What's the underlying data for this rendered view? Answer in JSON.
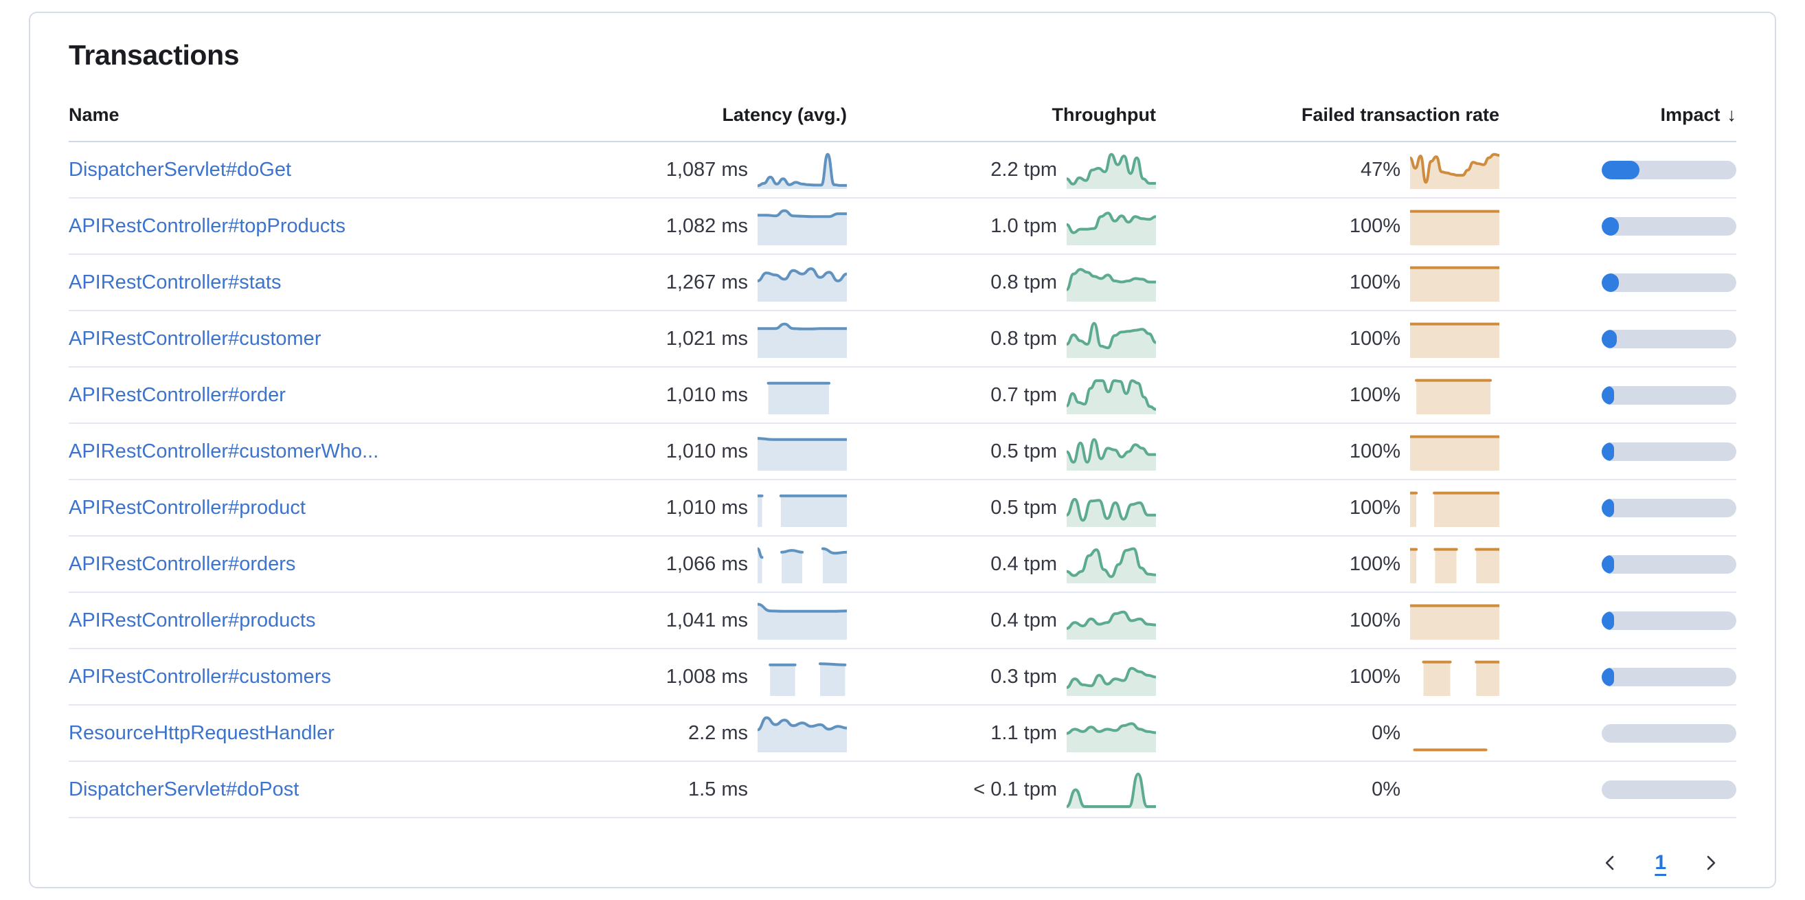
{
  "card": {
    "title": "Transactions"
  },
  "palette": {
    "link": "#3c73cd",
    "link_bright": "#2674dd",
    "heading": "#1a1c21",
    "text": "#343741",
    "card_border": "#d6dce8",
    "divider": "#e3e8f2",
    "divider_strong": "#cfd7e4",
    "latency_line": "#6092c0",
    "latency_fill": "#dbe6f1",
    "throughput_line": "#5cab91",
    "throughput_fill": "#dcebe4",
    "failed_line": "#ce8c3e",
    "failed_fill": "#f2e1cc",
    "impact_fill": "#2f7de0",
    "impact_track": "#d4dbe6"
  },
  "table": {
    "columns": {
      "name": "Name",
      "latency": "Latency (avg.)",
      "throughput": "Throughput",
      "failed": "Failed transaction rate",
      "impact": "Impact"
    },
    "sort": {
      "column": "Impact",
      "direction": "desc",
      "arrow_glyph": "↓"
    },
    "rows": [
      {
        "name": "DispatcherServlet#doGet",
        "latency": "1,087 ms",
        "throughput": "2.2 tpm",
        "failed_rate": "47%",
        "impact_pct": 28,
        "latency_spark": {
          "fill": true,
          "segments": [
            {
              "x": [
                0,
                1
              ],
              "v": [
                0.05,
                0.12,
                0.3,
                0.1,
                0.25,
                0.08,
                0.15,
                0.1,
                0.08,
                0.07,
                0.07,
                0.95,
                0.08,
                0.06,
                0.06
              ]
            }
          ]
        },
        "throughput_spark": {
          "fill": true,
          "segments": [
            {
              "x": [
                0,
                1
              ],
              "v": [
                0.25,
                0.1,
                0.28,
                0.2,
                0.5,
                0.55,
                0.45,
                0.95,
                0.65,
                0.9,
                0.4,
                0.85,
                0.25,
                0.12,
                0.12
              ]
            }
          ]
        },
        "failed_spark": {
          "fill": true,
          "segments": [
            {
              "x": [
                0,
                1
              ],
              "v": [
                0.85,
                0.55,
                0.9,
                0.15,
                0.75,
                0.88,
                0.45,
                0.42,
                0.38,
                0.35,
                0.35,
                0.5,
                0.72,
                0.68,
                0.65,
                0.85,
                0.95,
                0.92
              ]
            }
          ]
        }
      },
      {
        "name": "APIRestController#topProducts",
        "latency": "1,082 ms",
        "throughput": "1.0 tpm",
        "failed_rate": "100%",
        "impact_pct": 13,
        "latency_spark": {
          "fill": true,
          "segments": [
            {
              "x": [
                0,
                1
              ],
              "v": [
                0.82,
                0.82,
                0.8,
                0.95,
                0.8,
                0.79,
                0.78,
                0.78,
                0.78,
                0.86,
                0.86
              ]
            }
          ]
        },
        "throughput_spark": {
          "fill": true,
          "segments": [
            {
              "x": [
                0,
                1
              ],
              "v": [
                0.55,
                0.32,
                0.42,
                0.42,
                0.44,
                0.78,
                0.88,
                0.65,
                0.8,
                0.62,
                0.78,
                0.72,
                0.7,
                0.78
              ]
            }
          ]
        },
        "failed_spark": {
          "fill": true,
          "segments": [
            {
              "x": [
                0,
                1
              ],
              "v": [
                0.93,
                0.93
              ]
            }
          ]
        }
      },
      {
        "name": "APIRestController#stats",
        "latency": "1,267 ms",
        "throughput": "0.8 tpm",
        "failed_rate": "100%",
        "impact_pct": 13,
        "latency_spark": {
          "fill": true,
          "segments": [
            {
              "x": [
                0,
                1
              ],
              "v": [
                0.55,
                0.78,
                0.72,
                0.6,
                0.85,
                0.75,
                0.9,
                0.65,
                0.8,
                0.55,
                0.75
              ]
            }
          ]
        },
        "throughput_spark": {
          "fill": true,
          "segments": [
            {
              "x": [
                0,
                1
              ],
              "v": [
                0.3,
                0.75,
                0.88,
                0.8,
                0.68,
                0.62,
                0.72,
                0.55,
                0.52,
                0.55,
                0.62,
                0.6,
                0.52,
                0.52
              ]
            }
          ]
        },
        "failed_spark": {
          "fill": true,
          "segments": [
            {
              "x": [
                0,
                1
              ],
              "v": [
                0.93,
                0.93
              ]
            }
          ]
        }
      },
      {
        "name": "APIRestController#customer",
        "latency": "1,021 ms",
        "throughput": "0.8 tpm",
        "failed_rate": "100%",
        "impact_pct": 11,
        "latency_spark": {
          "fill": true,
          "segments": [
            {
              "x": [
                0,
                1
              ],
              "v": [
                0.8,
                0.8,
                0.8,
                0.93,
                0.8,
                0.79,
                0.79,
                0.8,
                0.8,
                0.8,
                0.8
              ]
            }
          ]
        },
        "throughput_spark": {
          "fill": true,
          "segments": [
            {
              "x": [
                0,
                1
              ],
              "v": [
                0.35,
                0.62,
                0.45,
                0.35,
                0.95,
                0.3,
                0.25,
                0.6,
                0.7,
                0.72,
                0.75,
                0.78,
                0.65,
                0.4
              ]
            }
          ]
        },
        "failed_spark": {
          "fill": true,
          "segments": [
            {
              "x": [
                0,
                1
              ],
              "v": [
                0.93,
                0.93
              ]
            }
          ]
        }
      },
      {
        "name": "APIRestController#order",
        "latency": "1,010 ms",
        "throughput": "0.7 tpm",
        "failed_rate": "100%",
        "impact_pct": 9,
        "latency_spark": {
          "fill": true,
          "segments": [
            {
              "x": [
                0.12,
                0.8
              ],
              "v": [
                0.85,
                0.85
              ]
            }
          ]
        },
        "throughput_spark": {
          "fill": true,
          "segments": [
            {
              "x": [
                0,
                1
              ],
              "v": [
                0.2,
                0.55,
                0.3,
                0.25,
                0.7,
                0.92,
                0.92,
                0.6,
                0.92,
                0.9,
                0.55,
                0.92,
                0.85,
                0.45,
                0.18,
                0.1
              ]
            }
          ]
        },
        "failed_spark": {
          "fill": true,
          "segments": [
            {
              "x": [
                0.07,
                0.9
              ],
              "v": [
                0.93,
                0.93
              ]
            }
          ]
        }
      },
      {
        "name": "APIRestController#customerWho...",
        "latency": "1,010 ms",
        "throughput": "0.5 tpm",
        "failed_rate": "100%",
        "impact_pct": 6.5,
        "latency_spark": {
          "fill": true,
          "segments": [
            {
              "x": [
                0,
                1
              ],
              "v": [
                0.88,
                0.85,
                0.85,
                0.85,
                0.85,
                0.85,
                0.85
              ]
            }
          ]
        },
        "throughput_spark": {
          "fill": true,
          "segments": [
            {
              "x": [
                0,
                1
              ],
              "v": [
                0.5,
                0.2,
                0.75,
                0.2,
                0.85,
                0.3,
                0.6,
                0.55,
                0.35,
                0.5,
                0.7,
                0.6,
                0.42,
                0.42
              ]
            }
          ]
        },
        "failed_spark": {
          "fill": true,
          "segments": [
            {
              "x": [
                0,
                1
              ],
              "v": [
                0.93,
                0.93
              ]
            }
          ]
        }
      },
      {
        "name": "APIRestController#product",
        "latency": "1,010 ms",
        "throughput": "0.5 tpm",
        "failed_rate": "100%",
        "impact_pct": 6,
        "latency_spark": {
          "fill": true,
          "segments": [
            {
              "x": [
                0,
                0.05
              ],
              "v": [
                0.85,
                0.85
              ]
            },
            {
              "x": [
                0.26,
                1
              ],
              "v": [
                0.85,
                0.85,
                0.85
              ]
            }
          ]
        },
        "throughput_spark": {
          "fill": true,
          "segments": [
            {
              "x": [
                0,
                1
              ],
              "v": [
                0.3,
                0.75,
                0.15,
                0.7,
                0.72,
                0.2,
                0.65,
                0.18,
                0.6,
                0.65,
                0.3,
                0.3
              ]
            }
          ]
        },
        "failed_spark": {
          "fill": true,
          "segments": [
            {
              "x": [
                0,
                0.07
              ],
              "v": [
                0.93,
                0.93
              ]
            },
            {
              "x": [
                0.27,
                1
              ],
              "v": [
                0.93,
                0.93
              ]
            }
          ]
        }
      },
      {
        "name": "APIRestController#orders",
        "latency": "1,066 ms",
        "throughput": "0.4 tpm",
        "failed_rate": "100%",
        "impact_pct": 6,
        "latency_spark": {
          "fill": true,
          "segments": [
            {
              "x": [
                0,
                0.05
              ],
              "v": [
                0.95,
                0.7
              ]
            },
            {
              "x": [
                0.27,
                0.5
              ],
              "v": [
                0.85,
                0.9,
                0.85
              ]
            },
            {
              "x": [
                0.73,
                1
              ],
              "v": [
                0.95,
                0.82,
                0.85
              ]
            }
          ]
        },
        "throughput_spark": {
          "fill": true,
          "segments": [
            {
              "x": [
                0,
                1
              ],
              "v": [
                0.3,
                0.18,
                0.3,
                0.75,
                0.92,
                0.35,
                0.15,
                0.5,
                0.9,
                0.95,
                0.4,
                0.22,
                0.2
              ]
            }
          ]
        },
        "failed_spark": {
          "fill": true,
          "segments": [
            {
              "x": [
                0,
                0.07
              ],
              "v": [
                0.93,
                0.93
              ]
            },
            {
              "x": [
                0.28,
                0.52
              ],
              "v": [
                0.93,
                0.93
              ]
            },
            {
              "x": [
                0.74,
                1
              ],
              "v": [
                0.93,
                0.93
              ]
            }
          ]
        }
      },
      {
        "name": "APIRestController#products",
        "latency": "1,041 ms",
        "throughput": "0.4 tpm",
        "failed_rate": "100%",
        "impact_pct": 5.5,
        "latency_spark": {
          "fill": true,
          "segments": [
            {
              "x": [
                0,
                1
              ],
              "v": [
                0.97,
                0.78,
                0.77,
                0.77,
                0.77,
                0.77,
                0.77,
                0.78
              ]
            }
          ]
        },
        "throughput_spark": {
          "fill": true,
          "segments": [
            {
              "x": [
                0,
                1
              ],
              "v": [
                0.28,
                0.45,
                0.35,
                0.55,
                0.4,
                0.45,
                0.7,
                0.75,
                0.5,
                0.55,
                0.4,
                0.38
              ]
            }
          ]
        },
        "failed_spark": {
          "fill": true,
          "segments": [
            {
              "x": [
                0,
                1
              ],
              "v": [
                0.93,
                0.93
              ]
            }
          ]
        }
      },
      {
        "name": "APIRestController#customers",
        "latency": "1,008 ms",
        "throughput": "0.3 tpm",
        "failed_rate": "100%",
        "impact_pct": 5,
        "latency_spark": {
          "fill": true,
          "segments": [
            {
              "x": [
                0.14,
                0.42
              ],
              "v": [
                0.85,
                0.85
              ]
            },
            {
              "x": [
                0.7,
                0.98
              ],
              "v": [
                0.88,
                0.85
              ]
            }
          ]
        },
        "throughput_spark": {
          "fill": true,
          "segments": [
            {
              "x": [
                0,
                1
              ],
              "v": [
                0.2,
                0.45,
                0.28,
                0.25,
                0.55,
                0.3,
                0.45,
                0.4,
                0.75,
                0.65,
                0.55,
                0.5
              ]
            }
          ]
        },
        "failed_spark": {
          "fill": true,
          "segments": [
            {
              "x": [
                0.15,
                0.45
              ],
              "v": [
                0.93,
                0.93
              ]
            },
            {
              "x": [
                0.74,
                1
              ],
              "v": [
                0.93,
                0.93
              ]
            }
          ]
        }
      },
      {
        "name": "ResourceHttpRequestHandler",
        "latency": "2.2 ms",
        "throughput": "1.1 tpm",
        "failed_rate": "0%",
        "impact_pct": 0,
        "latency_spark": {
          "fill": true,
          "segments": [
            {
              "x": [
                0,
                1
              ],
              "v": [
                0.6,
                0.95,
                0.75,
                0.88,
                0.72,
                0.8,
                0.7,
                0.75,
                0.62,
                0.7,
                0.65
              ]
            }
          ]
        },
        "throughput_spark": {
          "fill": true,
          "segments": [
            {
              "x": [
                0,
                1
              ],
              "v": [
                0.5,
                0.62,
                0.55,
                0.68,
                0.55,
                0.62,
                0.58,
                0.72,
                0.78,
                0.62,
                0.55,
                0.52
              ]
            }
          ]
        },
        "failed_spark": {
          "fill": false,
          "segments": [
            {
              "x": [
                0.05,
                0.85
              ],
              "v": [
                0.03,
                0.03
              ]
            }
          ]
        }
      },
      {
        "name": "DispatcherServlet#doPost",
        "latency": "1.5 ms",
        "throughput": "< 0.1 tpm",
        "failed_rate": "0%",
        "impact_pct": 0,
        "latency_spark": null,
        "throughput_spark": {
          "fill": true,
          "segments": [
            {
              "x": [
                0,
                1
              ],
              "v": [
                0.02,
                0.5,
                0.02,
                0.02,
                0.02,
                0.02,
                0.02,
                0.02,
                0.95,
                0.02,
                0.02
              ]
            }
          ]
        },
        "failed_spark": null
      }
    ]
  },
  "pagination": {
    "current_page": "1",
    "prev_icon": "chevron-left",
    "next_icon": "chevron-right"
  }
}
